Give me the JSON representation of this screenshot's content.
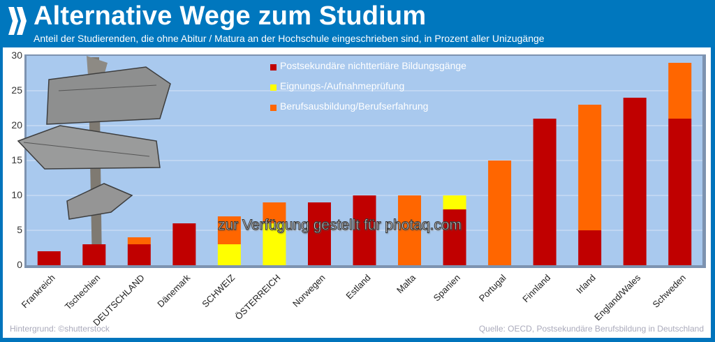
{
  "header": {
    "logo_icon": "double-chevron-right-icon",
    "title": "Alternative Wege zum Studium",
    "subtitle": "Anteil der Studierenden, die ohne Abitur / Matura an der Hochschule eingeschrieben sind, in Prozent aller Unizugänge"
  },
  "colors": {
    "header_bg": "#0077be",
    "plot_bg": "#a9c9ee",
    "postsekundaer": "#c00000",
    "eignung": "#ffff00",
    "beruf": "#ff6600"
  },
  "watermark": "zur Verfügung gestellt für photaq.com",
  "credit": "Hintergrund: ©shutterstock",
  "source": "Quelle: OECD, Postsekundäre Berufsbildung in Deutschland",
  "background_image": "wooden-signpost",
  "chart_data": {
    "type": "bar",
    "stacked": true,
    "title": "Alternative Wege zum Studium",
    "subtitle": "Anteil der Studierenden, die ohne Abitur / Matura an der Hochschule eingeschrieben sind, in Prozent aller Unizugänge",
    "xlabel": "",
    "ylabel": "",
    "ylim": [
      0,
      30
    ],
    "yticks": [
      0,
      5,
      10,
      15,
      20,
      25,
      30
    ],
    "grid": true,
    "legend_position": "top-center",
    "categories": [
      "Frankreich",
      "Tschechien",
      "DEUTSCHLAND",
      "Dänemark",
      "SCHWEIZ",
      "ÖSTERREICH",
      "Norwegen",
      "Estland",
      "Malta",
      "Spanien",
      "Portugal",
      "Finnland",
      "Irland",
      "England/Wales",
      "Schweden"
    ],
    "series": [
      {
        "name": "Postsekundäre nichttertiäre Bildungsgänge",
        "color": "#c00000",
        "values": [
          2,
          3,
          3,
          6,
          0,
          0,
          9,
          10,
          0,
          8,
          0,
          21,
          5,
          24,
          21
        ]
      },
      {
        "name": "Eignungs-/Aufnahmeprüfung",
        "color": "#ffff00",
        "values": [
          0,
          0,
          0,
          0,
          3,
          6,
          0,
          0,
          0,
          2,
          0,
          0,
          0,
          0,
          0
        ]
      },
      {
        "name": "Berufsausbildung/Berufserfahrung",
        "color": "#ff6600",
        "values": [
          0,
          0,
          1,
          0,
          4,
          3,
          0,
          0,
          10,
          0,
          15,
          0,
          18,
          0,
          8
        ]
      }
    ]
  }
}
